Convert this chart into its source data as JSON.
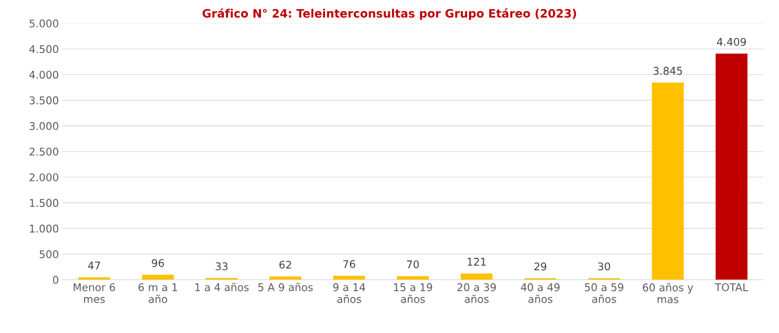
{
  "chart_data": {
    "type": "bar",
    "title": "Gráfico N° 24: Teleinterconsultas por Grupo Etáreo (2023)",
    "categories": [
      "Menor 6\nmes",
      "6 m a 1\naño",
      "1 a 4 años",
      "5 A 9 años",
      "9 a 14\naños",
      "15 a 19\naños",
      "20 a 39\naños",
      "40 a 49\naños",
      "50 a 59\naños",
      "60 años y\nmas",
      "TOTAL"
    ],
    "values": [
      47,
      96,
      33,
      62,
      76,
      70,
      121,
      29,
      30,
      3845,
      4409
    ],
    "colors": [
      "#ffc000",
      "#ffc000",
      "#ffc000",
      "#ffc000",
      "#ffc000",
      "#ffc000",
      "#ffc000",
      "#ffc000",
      "#ffc000",
      "#ffc000",
      "#c00000"
    ],
    "value_labels": [
      "47",
      "96",
      "33",
      "62",
      "76",
      "70",
      "121",
      "29",
      "30",
      "3.845",
      "4.409"
    ],
    "ylim": [
      0,
      5000
    ],
    "yticks": [
      {
        "value": 0,
        "label": "0"
      },
      {
        "value": 500,
        "label": "500"
      },
      {
        "value": 1000,
        "label": "1.000"
      },
      {
        "value": 1500,
        "label": "1.500"
      },
      {
        "value": 2000,
        "label": "2.000"
      },
      {
        "value": 2500,
        "label": "2.500"
      },
      {
        "value": 3000,
        "label": "3.000"
      },
      {
        "value": 3500,
        "label": "3.500"
      },
      {
        "value": 4000,
        "label": "4.000"
      },
      {
        "value": 4500,
        "label": "4.500"
      },
      {
        "value": 5000,
        "label": "5.000"
      }
    ],
    "grid": "y",
    "legend": false
  }
}
